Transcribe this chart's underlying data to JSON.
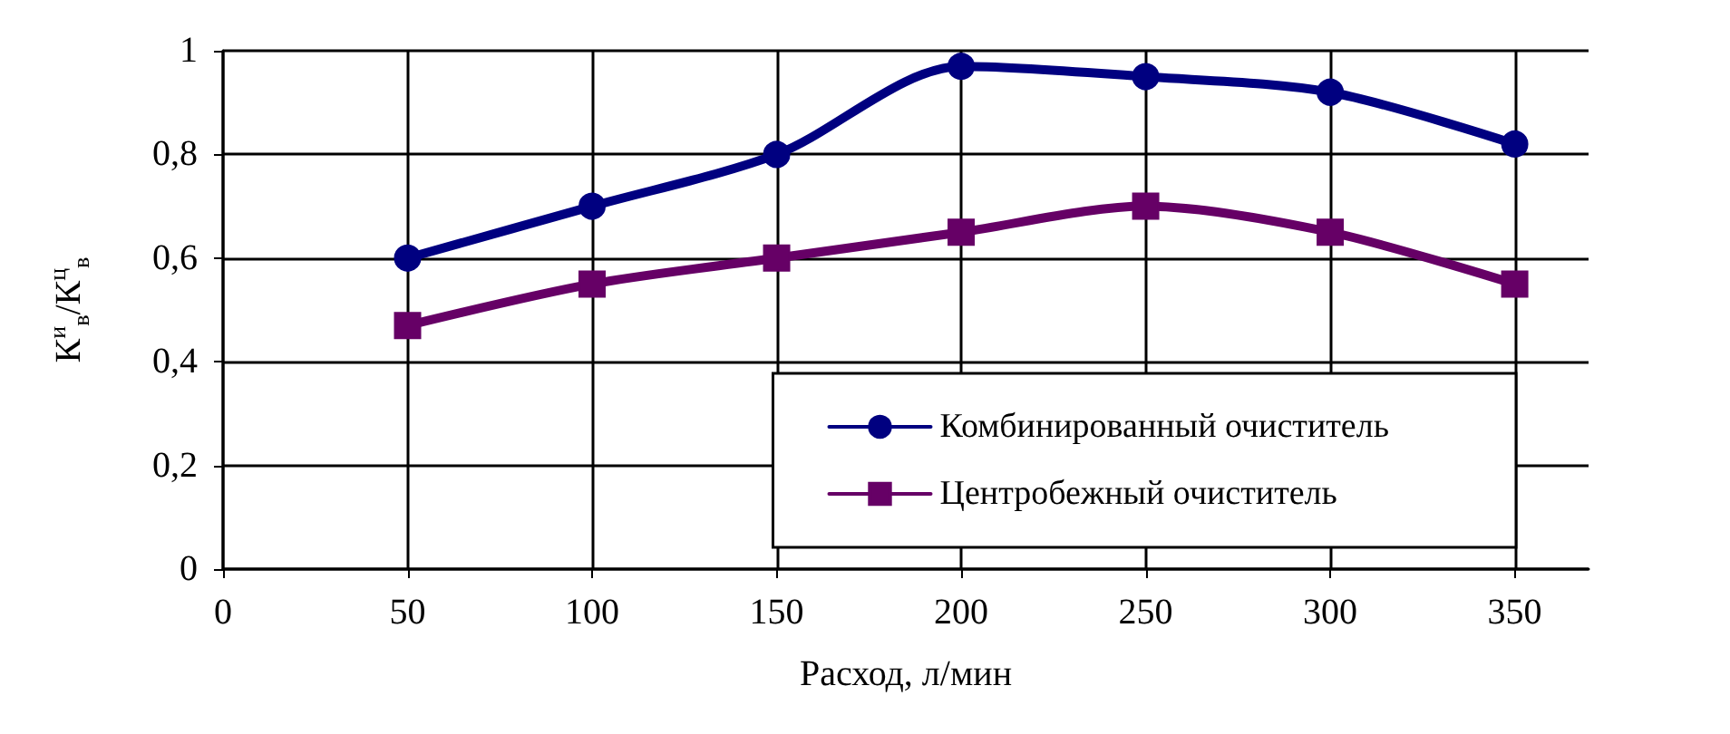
{
  "chart_data": {
    "type": "line",
    "xlabel": "Расход, л/мин",
    "ylabel": "К$^{и}$$_{в}$/К$^{ц}$$_{в}$",
    "x": [
      50,
      100,
      150,
      200,
      250,
      300,
      350
    ],
    "series": [
      {
        "name": "Комбинированный очиститель",
        "color": "#000080",
        "marker": "circle",
        "values": [
          0.6,
          0.7,
          0.8,
          0.97,
          0.95,
          0.92,
          0.82
        ]
      },
      {
        "name": "Центробежный очиститель",
        "color": "#660066",
        "marker": "square",
        "values": [
          0.47,
          0.55,
          0.6,
          0.65,
          0.7,
          0.65,
          0.55
        ]
      }
    ],
    "xlim": [
      0,
      370
    ],
    "xticks": [
      0,
      50,
      100,
      150,
      200,
      250,
      300,
      350
    ],
    "ylim": [
      0,
      1
    ],
    "yticks": [
      0,
      {
        "value": 0.2,
        "label": "0,2"
      },
      {
        "value": 0.4,
        "label": "0,4"
      },
      {
        "value": 0.6,
        "label": "0,6"
      },
      {
        "value": 0.8,
        "label": "0,8"
      },
      1
    ],
    "grid": true,
    "legend": "bottom right",
    "line_style": "solid"
  }
}
